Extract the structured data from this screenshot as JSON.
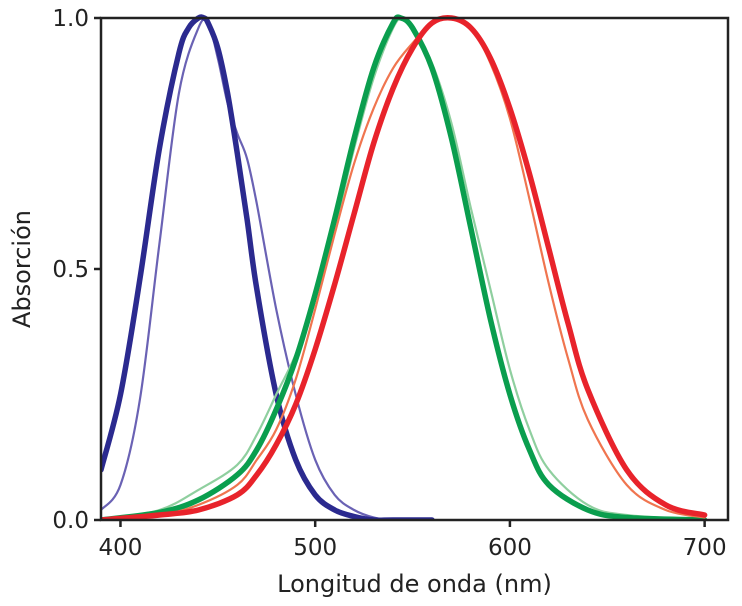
{
  "chart_data": {
    "type": "line",
    "title": "",
    "xlabel": "Longitud de onda (nm)",
    "ylabel": "Absorción",
    "xlim": [
      390,
      712
    ],
    "ylim": [
      0,
      1.0
    ],
    "xticks": [
      400,
      500,
      600,
      700
    ],
    "xtick_labels": [
      "400",
      "500",
      "600",
      "700"
    ],
    "yticks": [
      0,
      0.5,
      1.0
    ],
    "ytick_labels": [
      "0.0",
      "0.5",
      "1.0"
    ],
    "grid": false,
    "legend": "none",
    "series": [
      {
        "color": "#6a62b4",
        "style": "thin",
        "x": [
          390,
          400,
          410,
          420,
          430,
          440,
          445,
          450,
          455,
          460,
          465,
          470,
          480,
          490,
          500,
          510,
          520,
          530,
          540,
          560
        ],
        "y": [
          0.02,
          0.07,
          0.24,
          0.55,
          0.85,
          0.98,
          0.99,
          0.92,
          0.83,
          0.77,
          0.72,
          0.63,
          0.42,
          0.25,
          0.12,
          0.05,
          0.02,
          0.005,
          0.0,
          0.0
        ]
      },
      {
        "color": "#2b2a8f",
        "style": "thick",
        "x": [
          390,
          400,
          410,
          420,
          430,
          435,
          440,
          443,
          445,
          450,
          455,
          460,
          465,
          470,
          480,
          490,
          500,
          510,
          520,
          530,
          540,
          560
        ],
        "y": [
          0.1,
          0.25,
          0.48,
          0.74,
          0.93,
          0.98,
          1.0,
          1.0,
          0.99,
          0.94,
          0.85,
          0.73,
          0.6,
          0.46,
          0.25,
          0.12,
          0.05,
          0.02,
          0.007,
          0.0,
          0.0,
          0.0
        ]
      },
      {
        "color": "#8fcf9f",
        "style": "thin",
        "x": [
          390,
          420,
          440,
          460,
          470,
          480,
          490,
          500,
          510,
          520,
          530,
          540,
          545,
          550,
          560,
          570,
          580,
          590,
          600,
          610,
          620,
          640,
          660,
          700
        ],
        "y": [
          0.0,
          0.02,
          0.06,
          0.11,
          0.17,
          0.25,
          0.33,
          0.44,
          0.58,
          0.74,
          0.88,
          0.98,
          1.0,
          0.98,
          0.91,
          0.79,
          0.62,
          0.46,
          0.3,
          0.18,
          0.1,
          0.03,
          0.01,
          0.0
        ]
      },
      {
        "color": "#0a9e4e",
        "style": "thick",
        "x": [
          390,
          420,
          440,
          460,
          470,
          480,
          490,
          500,
          510,
          520,
          530,
          540,
          544,
          550,
          560,
          570,
          580,
          590,
          600,
          610,
          620,
          640,
          660,
          700
        ],
        "y": [
          0.0,
          0.015,
          0.04,
          0.09,
          0.14,
          0.22,
          0.32,
          0.45,
          0.6,
          0.76,
          0.9,
          0.99,
          1.0,
          0.98,
          0.9,
          0.76,
          0.58,
          0.4,
          0.25,
          0.14,
          0.07,
          0.02,
          0.005,
          0.0
        ]
      },
      {
        "color": "#f0754f",
        "style": "thin",
        "x": [
          390,
          420,
          440,
          460,
          470,
          480,
          490,
          500,
          510,
          520,
          530,
          540,
          550,
          560,
          570,
          580,
          590,
          600,
          610,
          620,
          630,
          640,
          660,
          680,
          700
        ],
        "y": [
          0.0,
          0.01,
          0.03,
          0.07,
          0.12,
          0.18,
          0.28,
          0.42,
          0.57,
          0.71,
          0.82,
          0.9,
          0.95,
          0.99,
          1.0,
          0.98,
          0.91,
          0.8,
          0.64,
          0.47,
          0.32,
          0.2,
          0.07,
          0.02,
          0.005
        ]
      },
      {
        "color": "#e8232b",
        "style": "thick",
        "x": [
          390,
          420,
          440,
          460,
          470,
          480,
          490,
          500,
          510,
          520,
          530,
          540,
          550,
          560,
          570,
          580,
          590,
          600,
          610,
          620,
          630,
          640,
          660,
          680,
          700
        ],
        "y": [
          0.0,
          0.01,
          0.02,
          0.05,
          0.09,
          0.15,
          0.23,
          0.34,
          0.47,
          0.61,
          0.75,
          0.86,
          0.94,
          0.99,
          1.0,
          0.98,
          0.92,
          0.82,
          0.69,
          0.54,
          0.39,
          0.26,
          0.1,
          0.03,
          0.01
        ]
      }
    ]
  }
}
